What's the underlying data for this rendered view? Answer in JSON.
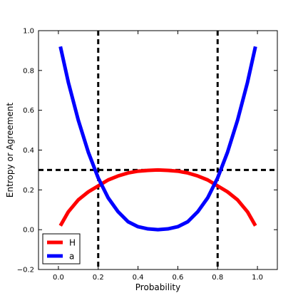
{
  "chart_data": {
    "type": "line",
    "xlabel": "Probability",
    "ylabel": "Entropy or Agreement",
    "xlim": [
      -0.1,
      1.1
    ],
    "ylim": [
      -0.2,
      1.0
    ],
    "xticks": [
      0.0,
      0.2,
      0.4,
      0.6,
      0.8,
      1.0
    ],
    "xtick_labels": [
      "0.0",
      "0.2",
      "0.4",
      "0.6",
      "0.8",
      "1.0"
    ],
    "yticks": [
      -0.2,
      0.0,
      0.2,
      0.4,
      0.6,
      0.8,
      1.0
    ],
    "ytick_labels": [
      "−0.2",
      "0.0",
      "0.2",
      "0.4",
      "0.6",
      "0.8",
      "1.0"
    ],
    "grid": false,
    "legend_position": "lower-left",
    "series": [
      {
        "name": "H",
        "color": "#ff0000",
        "x": [
          0.01,
          0.05,
          0.1,
          0.15,
          0.2,
          0.25,
          0.3,
          0.35,
          0.4,
          0.45,
          0.5,
          0.55,
          0.6,
          0.65,
          0.7,
          0.75,
          0.8,
          0.85,
          0.9,
          0.95,
          0.99
        ],
        "y": [
          0.02,
          0.09,
          0.15,
          0.19,
          0.22,
          0.25,
          0.27,
          0.285,
          0.294,
          0.298,
          0.3,
          0.298,
          0.294,
          0.285,
          0.27,
          0.25,
          0.22,
          0.19,
          0.15,
          0.09,
          0.02
        ]
      },
      {
        "name": "a",
        "color": "#0000ff",
        "x": [
          0.01,
          0.05,
          0.1,
          0.15,
          0.2,
          0.25,
          0.3,
          0.35,
          0.4,
          0.45,
          0.5,
          0.55,
          0.6,
          0.65,
          0.7,
          0.75,
          0.8,
          0.85,
          0.9,
          0.95,
          0.99
        ],
        "y": [
          0.92,
          0.74,
          0.55,
          0.39,
          0.26,
          0.16,
          0.09,
          0.04,
          0.015,
          0.004,
          0.0,
          0.004,
          0.015,
          0.04,
          0.09,
          0.16,
          0.26,
          0.39,
          0.55,
          0.74,
          0.92
        ]
      }
    ],
    "reference_lines": {
      "color": "#000000",
      "style": "dashed",
      "vertical_x": [
        0.2,
        0.8
      ],
      "horizontal_y": [
        0.3
      ]
    }
  }
}
